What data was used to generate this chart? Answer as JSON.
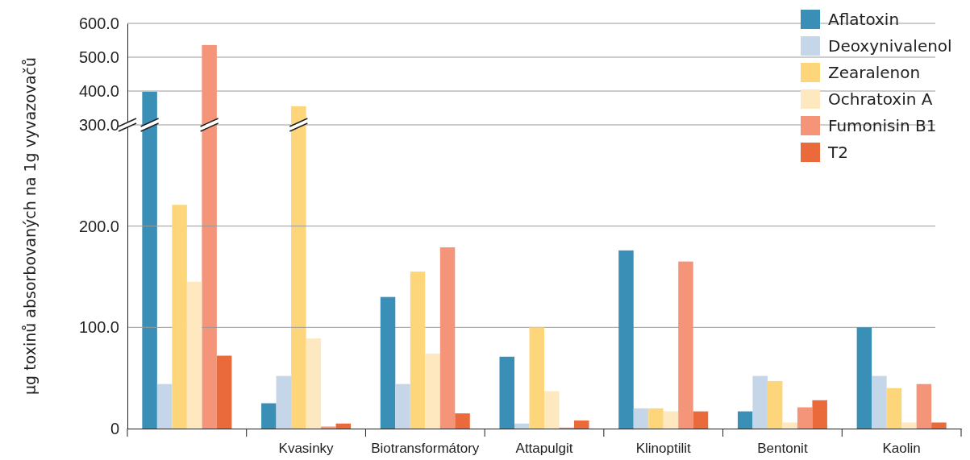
{
  "chart_data": [
    {
      "type": "bar",
      "categories": [
        null,
        null,
        null,
        null,
        null,
        null,
        null
      ],
      "series": [
        {
          "name": "Aflatoxin",
          "color": "#3a8fb7",
          "values": [
            398,
            null,
            null,
            null,
            null,
            null,
            null
          ]
        },
        {
          "name": "Deoxynivalenol",
          "color": "#c5d6e8",
          "values": [
            null,
            null,
            null,
            null,
            null,
            null,
            null
          ]
        },
        {
          "name": "Zearalenon",
          "color": "#fdd67c",
          "values": [
            null,
            355,
            null,
            null,
            null,
            null,
            null
          ]
        },
        {
          "name": "Ochratoxin A",
          "color": "#fde8c0",
          "values": [
            null,
            null,
            null,
            null,
            null,
            null,
            null
          ]
        },
        {
          "name": "Fumonisin B1",
          "color": "#f4957a",
          "values": [
            536,
            null,
            null,
            null,
            null,
            null,
            null
          ]
        },
        {
          "name": "T2",
          "color": "#ea6a3c",
          "values": [
            null,
            null,
            null,
            null,
            null,
            null,
            null
          ]
        }
      ],
      "ylim": [
        300,
        600
      ],
      "yticks": [
        {
          "value": 300,
          "label": "300.0"
        },
        {
          "value": 400,
          "label": "400.0"
        },
        {
          "value": 500,
          "label": "500.0"
        },
        {
          "value": 600,
          "label": "600.0"
        }
      ],
      "tick_labels": "y",
      "grid": "y",
      "legend": "right"
    },
    {
      "type": "bar",
      "ylabel": "µg toxinů absorbovaných na 1g  vyvazovačů",
      "categories": [
        null,
        "Kvasinky",
        "Biotransformátory",
        "Attapulgit",
        "Klinoptilit",
        "Bentonit",
        "Kaolin"
      ],
      "series": [
        {
          "color": "#3a8fb7",
          "values": [
            null,
            25,
            130,
            71,
            176,
            17,
            100
          ]
        },
        {
          "color": "#c5d6e8",
          "values": [
            44,
            52,
            44,
            5,
            20,
            52,
            52
          ]
        },
        {
          "color": "#fdd67c",
          "values": [
            221,
            null,
            155,
            100,
            20,
            47,
            40
          ]
        },
        {
          "color": "#fde8c0",
          "values": [
            145,
            89,
            74,
            37,
            17,
            6,
            6
          ]
        },
        {
          "color": "#f4957a",
          "values": [
            null,
            2,
            179,
            1,
            165,
            21,
            44
          ]
        },
        {
          "color": "#ea6a3c",
          "values": [
            72,
            5,
            15,
            8,
            17,
            28,
            6
          ]
        }
      ],
      "ylim": [
        0,
        300
      ],
      "yticks": [
        0,
        {
          "value": 100,
          "label": "100.0"
        },
        {
          "value": 200,
          "label": "200.0"
        }
      ],
      "grid": "y"
    }
  ]
}
